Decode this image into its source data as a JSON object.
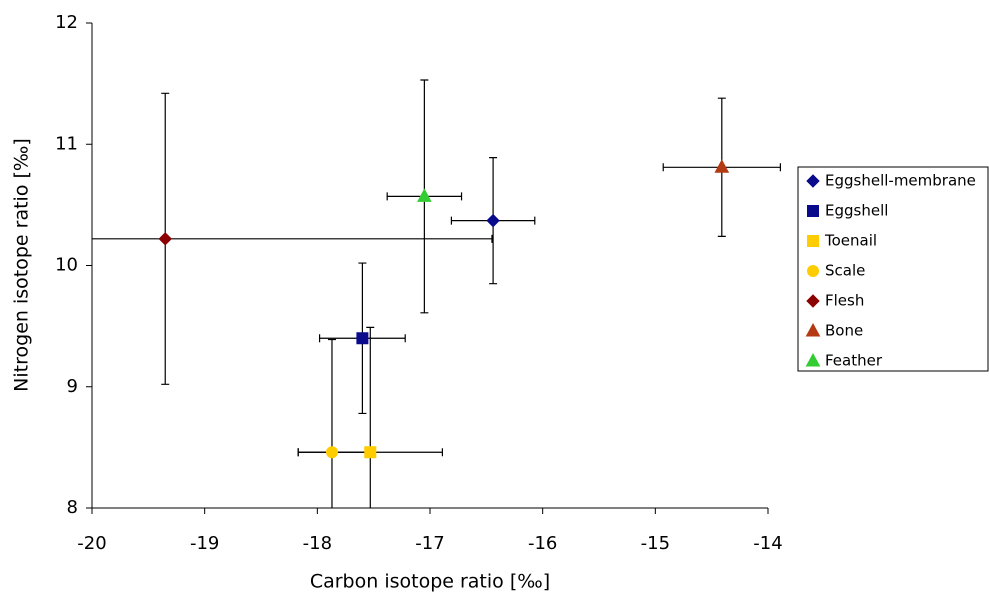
{
  "chart_data": {
    "type": "scatter",
    "x_label": "Carbon isotope ratio [‰]",
    "y_label": "Nitrogen isotope ratio [‰]",
    "xlim": [
      -20,
      -14
    ],
    "xticks": [
      -20,
      -19,
      -18,
      -17,
      -16,
      -15,
      -14
    ],
    "ylim": [
      8,
      12
    ],
    "yticks": [
      8,
      9,
      10,
      11,
      12
    ],
    "grid": false,
    "legend": "right",
    "series": [
      {
        "name": "Eggshell-membrane",
        "color": "#0a0a8c",
        "marker": "diamond",
        "x": [
          -16.44
        ],
        "y": [
          10.37
        ],
        "xerr": [
          0.37
        ],
        "yerr": [
          0.52
        ]
      },
      {
        "name": "Eggshell",
        "color": "#0a0a8c",
        "marker": "square",
        "x": [
          -17.6
        ],
        "y": [
          9.4
        ],
        "xerr": [
          0.38
        ],
        "yerr": [
          0.62
        ]
      },
      {
        "name": "Toenail",
        "color": "#ffcc00",
        "marker": "square",
        "x": [
          -17.53
        ],
        "y": [
          8.46
        ],
        "xerr": [
          0.64
        ],
        "yerr": [
          1.03
        ]
      },
      {
        "name": "Scale",
        "color": "#ffcc00",
        "marker": "circle",
        "x": [
          -17.87
        ],
        "y": [
          8.46
        ],
        "xerr": [
          0.3
        ],
        "yerr": [
          0.93
        ]
      },
      {
        "name": "Flesh",
        "color": "#8b0000",
        "marker": "diamond",
        "x": [
          -19.35
        ],
        "y": [
          10.22
        ],
        "xerr": [
          2.9
        ],
        "yerr": [
          1.2
        ]
      },
      {
        "name": "Bone",
        "color": "#b33a12",
        "marker": "triangle",
        "x": [
          -14.41
        ],
        "y": [
          10.81
        ],
        "xerr": [
          0.52
        ],
        "yerr": [
          0.57
        ]
      },
      {
        "name": "Feather",
        "color": "#33cc33",
        "marker": "triangle",
        "x": [
          -17.05
        ],
        "y": [
          10.57
        ],
        "xerr": [
          0.33
        ],
        "yerr": [
          0.96
        ]
      }
    ]
  }
}
